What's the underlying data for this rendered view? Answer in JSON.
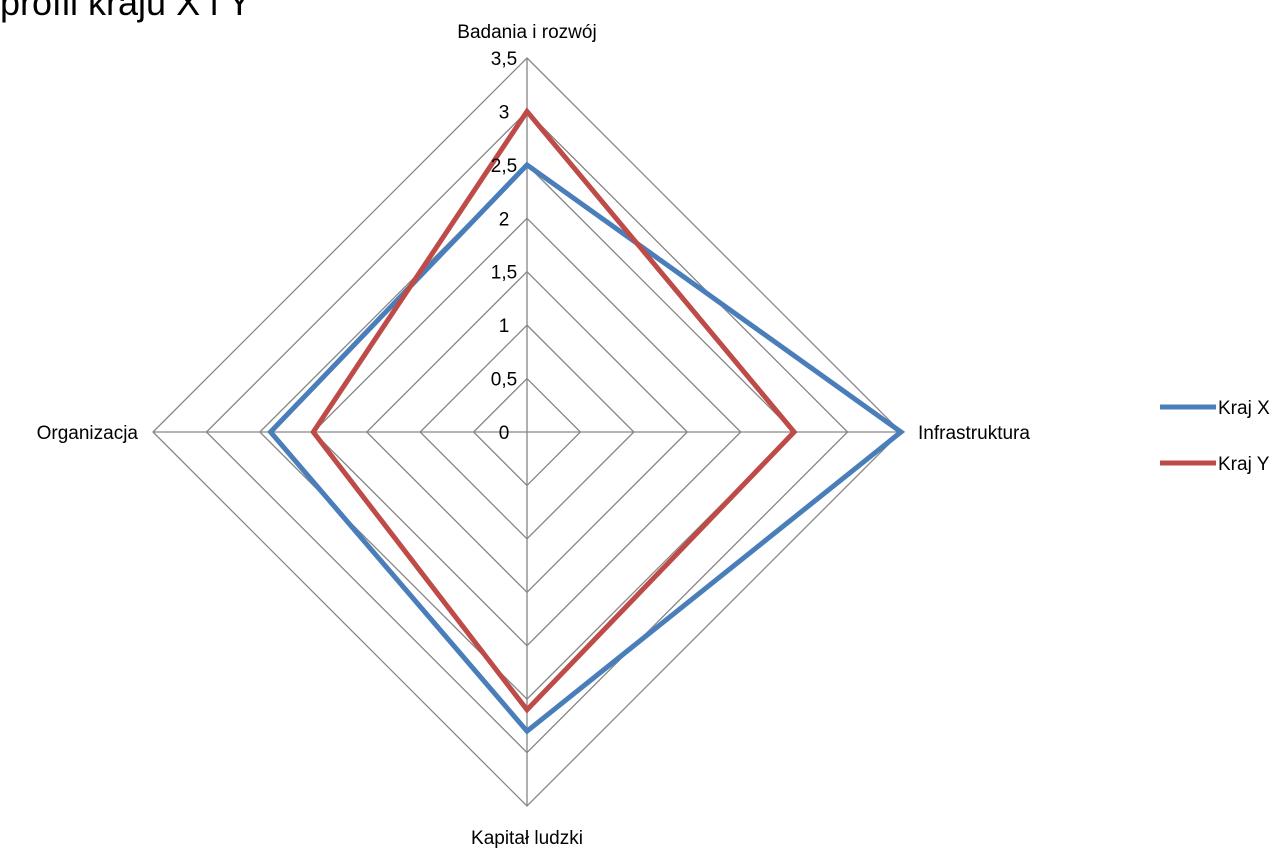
{
  "chart_data": {
    "type": "radar",
    "title": "profil kraju X i Y",
    "axes": [
      "Badania i rozwój",
      "Infrastruktura",
      "Kapitał ludzki",
      "Organizacja"
    ],
    "ticks": [
      "0",
      "0,5",
      "1",
      "1,5",
      "2",
      "2,5",
      "3",
      "3,5"
    ],
    "rmax": 3.5,
    "grid": true,
    "legend_position": "right",
    "series": [
      {
        "name": "Kraj X",
        "color": "#4a7ebb",
        "values": [
          2.5,
          3.5,
          2.8,
          2.4
        ]
      },
      {
        "name": "Kraj Y",
        "color": "#be4b48",
        "values": [
          3.0,
          2.5,
          2.6,
          2.0
        ]
      }
    ]
  }
}
